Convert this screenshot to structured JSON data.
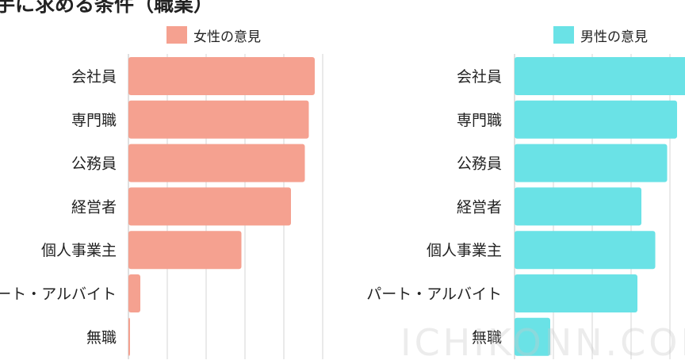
{
  "title": "手に求める条件（職業）",
  "legend": {
    "female": "女性の意見",
    "male": "男性の意見"
  },
  "watermark": "ICHIKONN.COM",
  "colors": {
    "female": "#f5a190",
    "male": "#6ae2e6",
    "grid": "#d6d6d6"
  },
  "chart_data": [
    {
      "type": "bar",
      "orientation": "horizontal",
      "categories": [
        "会社員",
        "専門職",
        "公務員",
        "経営者",
        "個人事業主",
        "パート・アルバイト",
        "無職"
      ],
      "series": [
        {
          "name": "女性の意見",
          "values": [
            47,
            45.5,
            44.5,
            41,
            28.5,
            3,
            0.4
          ]
        }
      ],
      "xlim": [
        0,
        50
      ],
      "grid": true
    },
    {
      "type": "bar",
      "orientation": "horizontal",
      "categories": [
        "会社員",
        "専門職",
        "公務員",
        "経営者",
        "個人事業主",
        "パート・アルバイト",
        "無職"
      ],
      "series": [
        {
          "name": "男性の意見",
          "values": [
            44,
            41,
            38.5,
            32,
            35.5,
            31,
            9
          ]
        }
      ],
      "xlim": [
        0,
        43
      ],
      "grid": true
    }
  ]
}
